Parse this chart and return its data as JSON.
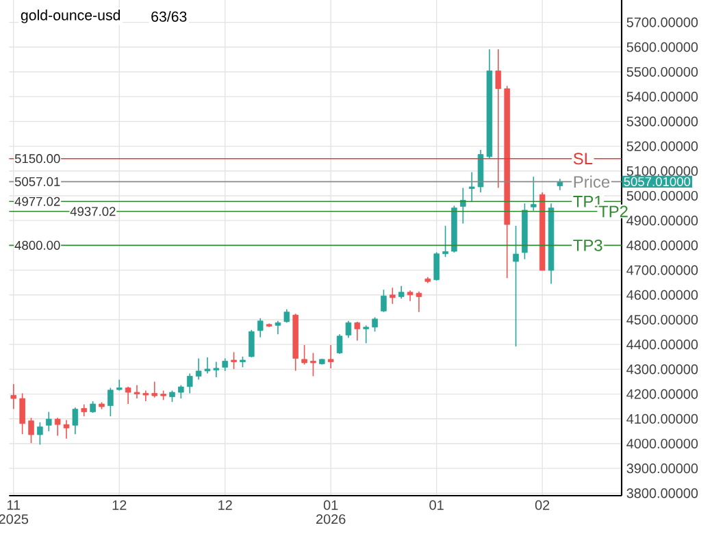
{
  "chart_data": {
    "type": "candlestick",
    "title": "gold-ounce-usd",
    "subtitle": "63/63",
    "categories": [
      "11",
      null,
      null,
      null,
      null,
      null,
      null,
      null,
      null,
      null,
      null,
      null,
      "12",
      null,
      null,
      null,
      null,
      null,
      null,
      null,
      null,
      null,
      null,
      null,
      "12",
      null,
      null,
      null,
      null,
      null,
      null,
      null,
      null,
      null,
      null,
      null,
      "01",
      null,
      null,
      null,
      null,
      null,
      null,
      null,
      null,
      null,
      null,
      null,
      "01",
      null,
      null,
      null,
      null,
      null,
      null,
      null,
      null,
      null,
      null,
      null,
      "02",
      null,
      null
    ],
    "ohlc": [
      [
        4195,
        4240,
        4140,
        4182
      ],
      [
        4182,
        4203,
        4038,
        4081
      ],
      [
        4092,
        4104,
        4002,
        4036
      ],
      [
        4036,
        4086,
        3996,
        4068
      ],
      [
        4074,
        4128,
        4050,
        4099
      ],
      [
        4099,
        4104,
        4032,
        4077
      ],
      [
        4077,
        4095,
        4020,
        4063
      ],
      [
        4074,
        4146,
        4038,
        4139
      ],
      [
        4142,
        4158,
        4110,
        4128
      ],
      [
        4128,
        4171,
        4124,
        4160
      ],
      [
        4160,
        4167,
        4139,
        4149
      ],
      [
        4153,
        4225,
        4110,
        4216
      ],
      [
        4218,
        4258,
        4214,
        4225
      ],
      [
        4225,
        4230,
        4160,
        4207
      ],
      [
        4207,
        4236,
        4182,
        4200
      ],
      [
        4203,
        4214,
        4171,
        4196
      ],
      [
        4203,
        4250,
        4186,
        4193
      ],
      [
        4200,
        4214,
        4176,
        4193
      ],
      [
        4189,
        4214,
        4168,
        4207
      ],
      [
        4207,
        4236,
        4182,
        4229
      ],
      [
        4230,
        4283,
        4203,
        4272
      ],
      [
        4272,
        4344,
        4258,
        4293
      ],
      [
        4293,
        4348,
        4283,
        4301
      ],
      [
        4297,
        4330,
        4268,
        4304
      ],
      [
        4308,
        4344,
        4293,
        4333
      ],
      [
        4337,
        4369,
        4301,
        4330
      ],
      [
        4330,
        4351,
        4308,
        4337
      ],
      [
        4351,
        4459,
        4348,
        4452
      ],
      [
        4456,
        4506,
        4429,
        4495
      ],
      [
        4481,
        4485,
        4470,
        4474
      ],
      [
        4477,
        4495,
        4441,
        4488
      ],
      [
        4492,
        4542,
        4488,
        4531
      ],
      [
        4519,
        4524,
        4294,
        4344
      ],
      [
        4340,
        4398,
        4319,
        4326
      ],
      [
        4333,
        4366,
        4272,
        4326
      ],
      [
        4322,
        4342,
        4319,
        4340
      ],
      [
        4340,
        4398,
        4304,
        4330
      ],
      [
        4366,
        4441,
        4362,
        4434
      ],
      [
        4438,
        4495,
        4427,
        4488
      ],
      [
        4488,
        4492,
        4416,
        4463
      ],
      [
        4463,
        4477,
        4405,
        4470
      ],
      [
        4470,
        4510,
        4452,
        4503
      ],
      [
        4535,
        4621,
        4531,
        4596
      ],
      [
        4600,
        4629,
        4564,
        4589
      ],
      [
        4593,
        4636,
        4585,
        4611
      ],
      [
        4611,
        4618,
        4575,
        4600
      ],
      [
        4607,
        4614,
        4531,
        4593
      ],
      [
        4665,
        4672,
        4648,
        4654
      ],
      [
        4661,
        4772,
        4658,
        4766
      ],
      [
        4766,
        4879,
        4753,
        4775
      ],
      [
        4776,
        4960,
        4771,
        4951
      ],
      [
        4957,
        5032,
        4888,
        4982
      ],
      [
        5029,
        5095,
        4978,
        5036
      ],
      [
        5036,
        5185,
        5014,
        5167
      ],
      [
        5158,
        5591,
        5149,
        5504
      ],
      [
        5504,
        5591,
        5032,
        5432
      ],
      [
        5432,
        5443,
        4668,
        4884
      ],
      [
        4735,
        4879,
        4392,
        4765
      ],
      [
        4771,
        4969,
        4744,
        4942
      ],
      [
        4955,
        5077,
        4940,
        4965
      ],
      [
        5005,
        5014,
        4699,
        4699
      ],
      [
        4699,
        4969,
        4645,
        4951
      ],
      [
        5040,
        5068,
        5023,
        5057.01
      ]
    ],
    "colors": [
      "#ef5350",
      "#ef5350",
      "#ef5350",
      "#26a69a",
      "#26a69a",
      "#ef5350",
      "#ef5350",
      "#26a69a",
      "#ef5350",
      "#26a69a",
      "#ef5350",
      "#26a69a",
      "#26a69a",
      "#ef5350",
      "#ef5350",
      "#ef5350",
      "#ef5350",
      "#ef5350",
      "#26a69a",
      "#26a69a",
      "#26a69a",
      "#26a69a",
      "#26a69a",
      "#26a69a",
      "#26a69a",
      "#ef5350",
      "#26a69a",
      "#26a69a",
      "#26a69a",
      "#ef5350",
      "#26a69a",
      "#26a69a",
      "#ef5350",
      "#ef5350",
      "#ef5350",
      "#26a69a",
      "#ef5350",
      "#26a69a",
      "#26a69a",
      "#ef5350",
      "#26a69a",
      "#26a69a",
      "#26a69a",
      "#ef5350",
      "#26a69a",
      "#ef5350",
      "#ef5350",
      "#ef5350",
      "#26a69a",
      "#26a69a",
      "#26a69a",
      "#26a69a",
      "#26a69a",
      "#26a69a",
      "#26a69a",
      "#ef5350",
      "#ef5350",
      "#26a69a",
      "#26a69a",
      "#26a69a",
      "#ef5350",
      "#26a69a",
      "#26a69a"
    ],
    "ylim": [
      3790,
      5790
    ],
    "yticks": [
      {
        "value": 3800,
        "label": "3800.00000"
      },
      {
        "value": 3900,
        "label": "3900.00000"
      },
      {
        "value": 4000,
        "label": "4000.00000"
      },
      {
        "value": 4100,
        "label": "4100.00000"
      },
      {
        "value": 4200,
        "label": "4200.00000"
      },
      {
        "value": 4300,
        "label": "4300.00000"
      },
      {
        "value": 4400,
        "label": "4400.00000"
      },
      {
        "value": 4500,
        "label": "4500.00000"
      },
      {
        "value": 4600,
        "label": "4600.00000"
      },
      {
        "value": 4700,
        "label": "4700.00000"
      },
      {
        "value": 4800,
        "label": "4800.00000"
      },
      {
        "value": 4900,
        "label": "4900.00000"
      },
      {
        "value": 5000,
        "label": "5000.00000"
      },
      {
        "value": 5100,
        "label": "5100.00000"
      },
      {
        "value": 5200,
        "label": "5200.00000"
      },
      {
        "value": 5300,
        "label": "5300.00000"
      },
      {
        "value": 5400,
        "label": "5400.00000"
      },
      {
        "value": 5500,
        "label": "5500.00000"
      },
      {
        "value": 5600,
        "label": "5600.00000"
      },
      {
        "value": 5700,
        "label": "5700.00000"
      }
    ],
    "grid": true,
    "ref_lines": [
      {
        "axis": "y",
        "value": 5150,
        "label": "SL",
        "color": "#e53935"
      },
      {
        "axis": "y",
        "value": 5057.01,
        "label": "Price",
        "color": "#8a8a8a"
      },
      {
        "axis": "y",
        "value": 4977.02,
        "label": "TP1",
        "color": "#2e8b2e"
      },
      {
        "axis": "y",
        "value": 4937.02,
        "label": "TP2",
        "color": "#2e8b2e"
      },
      {
        "axis": "y",
        "value": 4800,
        "label": "TP3",
        "color": "#2e8b2e"
      }
    ],
    "annotations": [
      {
        "text": "5150.00",
        "y": 5150
      },
      {
        "text": "5057.01",
        "y": 5057.01
      },
      {
        "text": "4977.02",
        "y": 4977.02
      },
      {
        "text": "4937.02",
        "y": 4937.02
      },
      {
        "text": "4800.00",
        "y": 4800
      },
      "2025",
      "2026",
      "5057.01000"
    ]
  }
}
